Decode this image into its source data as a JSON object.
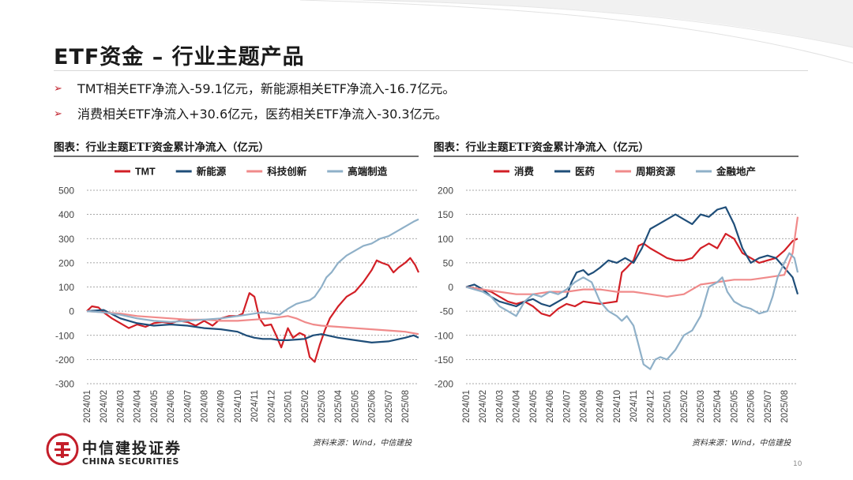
{
  "header": {
    "title": "ETF资金 – 行业主题产品"
  },
  "bullets": [
    "TMT相关ETF净流入-59.1亿元，新能源相关ETF净流入-16.7亿元。",
    "消费相关ETF净流入+30.6亿元，医药相关ETF净流入-30.3亿元。"
  ],
  "footer": {
    "logo_cn": "中信建投证券",
    "logo_en": "CHINA SECURITIES",
    "page_number": "10"
  },
  "chart_data": [
    {
      "type": "line",
      "caption": "图表：行业主题ETF资金累计净流入（亿元）",
      "source": "资料来源：Wind，中信建投",
      "ylim": [
        -300,
        500
      ],
      "yticks": [
        "500",
        "400",
        "300",
        "200",
        "100",
        "0",
        "-100",
        "-200",
        "-300"
      ],
      "xlim": [
        0,
        19.8
      ],
      "x_labels": [
        "2024/01",
        "2024/02",
        "2024/03",
        "2024/04",
        "2024/05",
        "2024/06",
        "2024/07",
        "2024/08",
        "2024/09",
        "2024/10",
        "2024/11",
        "2024/12",
        "2025/01",
        "2025/02",
        "2025/03",
        "2025/04",
        "2025/05",
        "2025/06",
        "2025/07",
        "2025/08"
      ],
      "grid": true,
      "legend": "top",
      "series": [
        {
          "name": "TMT",
          "color": "#d21f26",
          "x": [
            0,
            0.3,
            0.7,
            1,
            1.5,
            2,
            2.5,
            3,
            3.5,
            4,
            4.5,
            5,
            5.5,
            6,
            6.5,
            7,
            7.5,
            8,
            8.5,
            9,
            9.3,
            9.7,
            10,
            10.3,
            10.6,
            11,
            11.3,
            11.6,
            12,
            12.3,
            12.7,
            13,
            13.3,
            13.6,
            13.9,
            14.2,
            14.5,
            15,
            15.5,
            16,
            16.5,
            17,
            17.3,
            17.6,
            18,
            18.3,
            18.6,
            19,
            19.3,
            19.6,
            19.8
          ],
          "y": [
            0,
            20,
            15,
            -5,
            -30,
            -50,
            -70,
            -55,
            -65,
            -50,
            -45,
            -50,
            -40,
            -45,
            -60,
            -40,
            -60,
            -30,
            -20,
            -20,
            -10,
            75,
            60,
            -30,
            -60,
            -55,
            -100,
            -150,
            -70,
            -110,
            -90,
            -100,
            -190,
            -210,
            -140,
            -80,
            -30,
            20,
            60,
            80,
            120,
            170,
            210,
            200,
            190,
            160,
            180,
            200,
            220,
            190,
            160
          ]
        },
        {
          "name": "新能源",
          "color": "#1f4e79",
          "x": [
            0,
            1,
            2,
            3,
            4,
            5,
            6,
            7,
            8,
            9,
            9.5,
            10,
            10.5,
            11,
            11.5,
            12,
            13,
            13.5,
            14,
            15,
            16,
            17,
            18,
            19,
            19.5,
            19.8
          ],
          "y": [
            0,
            5,
            -30,
            -50,
            -60,
            -55,
            -60,
            -70,
            -75,
            -85,
            -100,
            -110,
            -115,
            -115,
            -120,
            -120,
            -115,
            -100,
            -95,
            -110,
            -120,
            -130,
            -125,
            -110,
            -100,
            -110
          ]
        },
        {
          "name": "科技创新",
          "color": "#f08a8a",
          "x": [
            0,
            1,
            2,
            3,
            4,
            5,
            6,
            7,
            8,
            9,
            10,
            11,
            12,
            12.5,
            13,
            13.5,
            14,
            15,
            16,
            17,
            18,
            19,
            19.8
          ],
          "y": [
            0,
            -5,
            -10,
            -20,
            -25,
            -30,
            -35,
            -35,
            -40,
            -40,
            -35,
            -30,
            -20,
            -30,
            -45,
            -55,
            -60,
            -65,
            -70,
            -75,
            -80,
            -85,
            -95
          ]
        },
        {
          "name": "高端制造",
          "color": "#8fb0c8",
          "x": [
            0,
            1,
            2,
            3,
            4,
            5,
            6,
            7,
            8,
            9,
            10,
            10.5,
            11,
            11.5,
            12,
            12.5,
            13,
            13.3,
            13.6,
            14,
            14.3,
            14.6,
            15,
            15.5,
            16,
            16.5,
            17,
            17.5,
            18,
            18.5,
            19,
            19.5,
            19.8
          ],
          "y": [
            0,
            -5,
            -15,
            -30,
            -40,
            -45,
            -40,
            -35,
            -30,
            -20,
            -10,
            -5,
            -10,
            -15,
            10,
            30,
            40,
            45,
            60,
            100,
            140,
            160,
            200,
            230,
            250,
            270,
            280,
            300,
            310,
            330,
            350,
            370,
            380
          ]
        }
      ]
    },
    {
      "type": "line",
      "caption": "图表：行业主题ETF资金累计净流入（亿元）",
      "source": "资料来源：Wind，中信建投",
      "ylim": [
        -200,
        200
      ],
      "yticks": [
        "200",
        "150",
        "100",
        "50",
        "0",
        "-50",
        "-100",
        "-150",
        "-200"
      ],
      "xlim": [
        0,
        19.8
      ],
      "x_labels": [
        "2024/01",
        "2024/02",
        "2024/03",
        "2024/04",
        "2024/05",
        "2024/06",
        "2024/07",
        "2024/08",
        "2024/09",
        "2024/10",
        "2024/11",
        "2024/12",
        "2025/01",
        "2025/02",
        "2025/03",
        "2025/04",
        "2025/05",
        "2025/06",
        "2025/07",
        "2025/08"
      ],
      "grid": true,
      "legend": "top",
      "series": [
        {
          "name": "消费",
          "color": "#d21f26",
          "x": [
            0,
            1,
            1.5,
            2,
            2.5,
            3,
            3.5,
            4,
            4.5,
            5,
            5.5,
            6,
            6.5,
            7,
            8,
            9,
            9.3,
            9.6,
            10,
            10.3,
            10.6,
            11,
            11.5,
            12,
            12.5,
            13,
            13.5,
            14,
            14.5,
            15,
            15.5,
            16,
            16.5,
            17,
            17.5,
            18,
            18.5,
            19,
            19.5,
            19.8
          ],
          "y": [
            0,
            -5,
            -10,
            -20,
            -30,
            -35,
            -30,
            -40,
            -55,
            -60,
            -45,
            -35,
            -40,
            -30,
            -35,
            -30,
            30,
            40,
            55,
            85,
            90,
            80,
            70,
            60,
            55,
            55,
            60,
            80,
            90,
            80,
            110,
            100,
            70,
            60,
            50,
            55,
            60,
            75,
            95,
            100
          ]
        },
        {
          "name": "医药",
          "color": "#1f4e79",
          "x": [
            0,
            0.5,
            1,
            1.5,
            2,
            2.5,
            3,
            3.5,
            4,
            4.5,
            5,
            5.5,
            6,
            6.3,
            6.6,
            7,
            7.3,
            7.6,
            8,
            8.5,
            9,
            9.5,
            10,
            10.5,
            11,
            11.5,
            12,
            12.5,
            13,
            13.5,
            14,
            14.5,
            15,
            15.5,
            16,
            16.5,
            17,
            17.5,
            18,
            18.5,
            19,
            19.5,
            19.8
          ],
          "y": [
            0,
            5,
            -5,
            -20,
            -30,
            -35,
            -40,
            -30,
            -25,
            -35,
            -40,
            -30,
            -20,
            10,
            30,
            35,
            25,
            30,
            40,
            55,
            50,
            60,
            50,
            80,
            120,
            130,
            140,
            150,
            140,
            130,
            150,
            145,
            160,
            165,
            130,
            80,
            50,
            60,
            65,
            60,
            40,
            20,
            -15
          ]
        },
        {
          "name": "周期资源",
          "color": "#f08a8a",
          "x": [
            0,
            1,
            2,
            3,
            4,
            5,
            6,
            7,
            8,
            9,
            10,
            11,
            12,
            13,
            14,
            15,
            16,
            17,
            18,
            19,
            19.5,
            19.8
          ],
          "y": [
            0,
            -5,
            -10,
            -15,
            -15,
            -10,
            -10,
            -5,
            -5,
            -10,
            -10,
            -15,
            -20,
            -15,
            5,
            10,
            15,
            15,
            20,
            25,
            70,
            145
          ]
        },
        {
          "name": "金融地产",
          "color": "#8fb0c8",
          "x": [
            0,
            0.5,
            1,
            1.5,
            2,
            2.5,
            3,
            3.5,
            4,
            4.5,
            5,
            5.5,
            6,
            6.5,
            7,
            7.5,
            8,
            8.5,
            9,
            9.3,
            9.6,
            10,
            10.3,
            10.6,
            11,
            11.3,
            11.6,
            12,
            12.5,
            13,
            13.5,
            14,
            14.5,
            15,
            15.3,
            15.6,
            16,
            16.5,
            17,
            17.5,
            18,
            18.3,
            18.6,
            19,
            19.3,
            19.6,
            19.8
          ],
          "y": [
            0,
            -5,
            -10,
            -20,
            -40,
            -50,
            -60,
            -30,
            -15,
            -20,
            -10,
            -15,
            -5,
            10,
            20,
            10,
            -30,
            -50,
            -60,
            -70,
            -60,
            -80,
            -120,
            -160,
            -170,
            -150,
            -145,
            -150,
            -130,
            -100,
            -90,
            -60,
            0,
            10,
            20,
            -10,
            -30,
            -40,
            -45,
            -55,
            -50,
            -20,
            20,
            50,
            70,
            60,
            30
          ]
        }
      ]
    }
  ]
}
